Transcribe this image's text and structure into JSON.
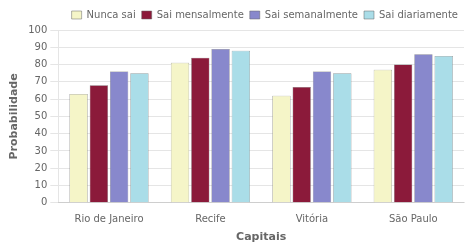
{
  "chart_data": {
    "type": "bar",
    "categories": [
      "Rio de Janeiro",
      "Recife",
      "Vitória",
      "São Paulo"
    ],
    "series": [
      {
        "name": "Nunca sai",
        "color": "#f5f5c8",
        "values": [
          63,
          81,
          62,
          77
        ]
      },
      {
        "name": "Sai mensalmente",
        "color": "#8b1a3a",
        "values": [
          68,
          84,
          67,
          80
        ]
      },
      {
        "name": "Sai semanalmente",
        "color": "#8888cc",
        "values": [
          76,
          89,
          76,
          86
        ]
      },
      {
        "name": "Sai diariamente",
        "color": "#aadde8",
        "values": [
          75,
          88,
          75,
          85
        ]
      }
    ],
    "xlabel": "Capitais",
    "ylabel": "Probabilidade",
    "ylim": [
      0,
      100
    ],
    "yticks": [
      0,
      10,
      20,
      30,
      40,
      50,
      60,
      70,
      80,
      90,
      100
    ],
    "grid": true,
    "legend": "upper right"
  }
}
